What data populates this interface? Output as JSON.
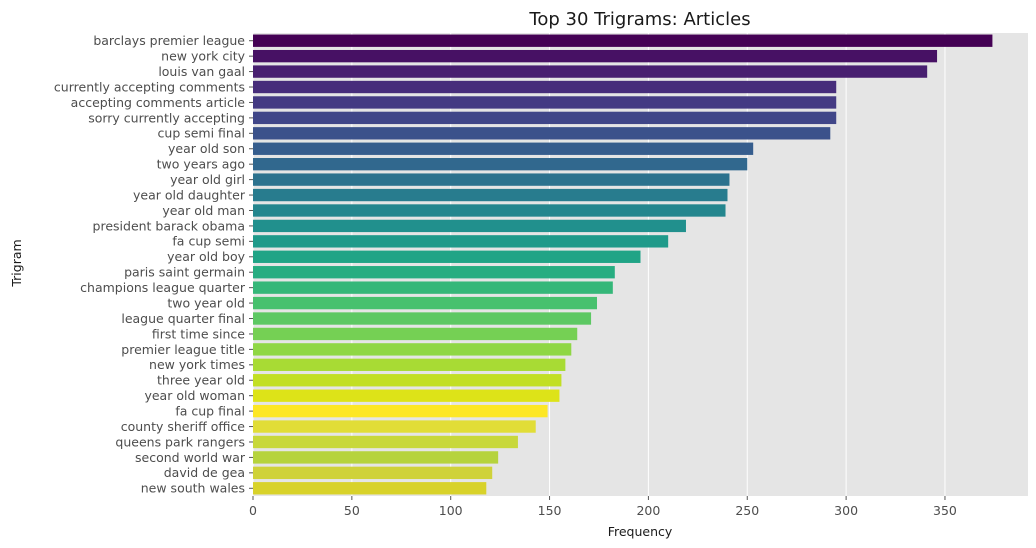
{
  "chart_data": {
    "type": "bar",
    "orientation": "horizontal",
    "title": "Top 30 Trigrams: Articles",
    "xlabel": "Frequency",
    "ylabel": "Trigram",
    "xlim": [
      0,
      392
    ],
    "xticks": [
      0,
      50,
      100,
      150,
      200,
      250,
      300,
      350
    ],
    "grid": true,
    "colormap": "viridis",
    "background": "#e5e5e5",
    "categories": [
      "barclays premier league",
      "new york city",
      "louis van gaal",
      "currently accepting comments",
      "accepting comments article",
      "sorry currently accepting",
      "cup semi final",
      "year old son",
      "two years ago",
      "year old girl",
      "year old daughter",
      "year old man",
      "president barack obama",
      "fa cup semi",
      "year old boy",
      "paris saint germain",
      "champions league quarter",
      "two year old",
      "league quarter final",
      "first time since",
      "premier league title",
      "new york times",
      "three year old",
      "year old woman",
      "fa cup final",
      "county sheriff office",
      "queens park rangers",
      "second world war",
      "david de gea",
      "new south wales"
    ],
    "values": [
      374,
      346,
      341,
      295,
      295,
      295,
      292,
      253,
      250,
      241,
      240,
      239,
      219,
      210,
      196,
      183,
      182,
      174,
      171,
      164,
      161,
      158,
      156,
      155,
      149,
      143,
      134,
      124,
      121,
      118
    ],
    "colors": [
      "#440154",
      "#471164",
      "#481f70",
      "#472d7b",
      "#443a83",
      "#404688",
      "#3b528b",
      "#365d8d",
      "#31688e",
      "#2c728e",
      "#287c8e",
      "#24868e",
      "#21908d",
      "#1f9a8a",
      "#20a486",
      "#27ad81",
      "#35b779",
      "#47c16e",
      "#5dc863",
      "#75d054",
      "#8fd744",
      "#a8db34",
      "#c2df23",
      "#dde318",
      "#fde725",
      "#e1dd37",
      "#c8d83a",
      "#b6d33d",
      "#cfd23a",
      "#d8d22a"
    ]
  }
}
